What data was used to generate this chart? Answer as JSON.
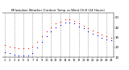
{
  "title": "Milwaukee Weather Outdoor Temp vs Wind Chill (24 Hours)",
  "hours": [
    1,
    2,
    3,
    4,
    5,
    6,
    7,
    8,
    9,
    10,
    11,
    12,
    13,
    14,
    15,
    16,
    17,
    18,
    19,
    20,
    21,
    22,
    23,
    24
  ],
  "temp": [
    22,
    21,
    20,
    19,
    19,
    19,
    21,
    26,
    31,
    36,
    40,
    44,
    46,
    48,
    48,
    47,
    44,
    42,
    39,
    37,
    35,
    33,
    31,
    30
  ],
  "wind_chill": [
    15,
    14,
    13,
    12,
    12,
    12,
    14,
    20,
    26,
    31,
    36,
    40,
    43,
    45,
    45,
    44,
    41,
    39,
    36,
    34,
    32,
    30,
    28,
    27
  ],
  "temp_color": "#ff0000",
  "wc_color": "#0000ff",
  "bg_color": "#ffffff",
  "grid_color": "#888888",
  "xlim": [
    0.5,
    24.5
  ],
  "ylim": [
    10,
    55
  ],
  "yticks": [
    10,
    20,
    30,
    40,
    50
  ],
  "ytick_labels": [
    "10",
    "20",
    "30",
    "40",
    "50"
  ],
  "grid_hours": [
    1,
    3,
    5,
    7,
    9,
    11,
    13,
    15,
    17,
    19,
    21,
    23
  ],
  "xtick_positions": [
    1,
    2,
    3,
    4,
    5,
    6,
    7,
    8,
    9,
    10,
    11,
    12,
    13,
    14,
    15,
    16,
    17,
    18,
    19,
    20,
    21,
    22,
    23,
    24
  ],
  "xtick_labels": [
    "1",
    "2",
    "3",
    "4",
    "5",
    "6",
    "7",
    "8",
    "9",
    "10",
    "11",
    "12",
    "13",
    "14",
    "15",
    "16",
    "17",
    "18",
    "19",
    "20",
    "21",
    "22",
    "23",
    "24"
  ]
}
